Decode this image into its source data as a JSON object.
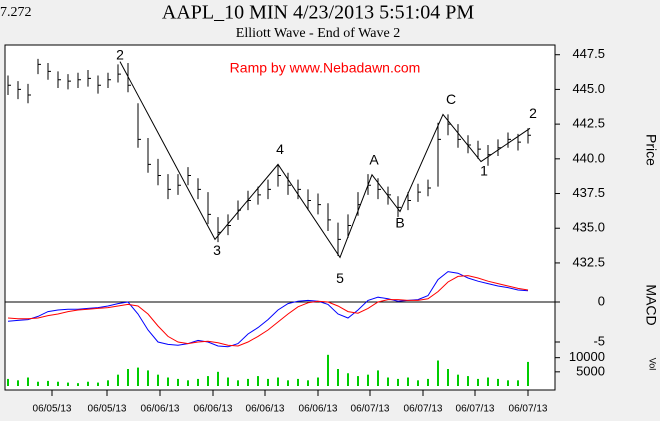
{
  "chart_data": {
    "type": "ohlc",
    "corner_text": "7.272",
    "title": "AAPL_10 MIN  4/23/2013  5:51:04 PM",
    "subtitle": "Elliott Wave -  End of Wave 2",
    "annotation": "Ramp by www.Nebadawn.com",
    "ylabel": "Price",
    "color": "#000000",
    "x": [
      0,
      1,
      2,
      3,
      4,
      5,
      6,
      7,
      8,
      9,
      10,
      11,
      12,
      13,
      14,
      15,
      16,
      17,
      18,
      19,
      20,
      21,
      22,
      23,
      24,
      25,
      26,
      27,
      28,
      29,
      30,
      31,
      32,
      33,
      34,
      35,
      36,
      37,
      38,
      39,
      40,
      41,
      42,
      43,
      44,
      45,
      46,
      47,
      48,
      49,
      50,
      51,
      52
    ],
    "xlim": [
      -0.3,
      54.7
    ],
    "xticks": [
      {
        "value": 4.4,
        "label": "06/05/13"
      },
      {
        "value": 9.9,
        "label": "06/05/13"
      },
      {
        "value": 15.2,
        "label": "06/06/13"
      },
      {
        "value": 20.5,
        "label": "06/06/13"
      },
      {
        "value": 25.7,
        "label": "06/06/13"
      },
      {
        "value": 31.0,
        "label": "06/06/13"
      },
      {
        "value": 36.2,
        "label": "06/07/13"
      },
      {
        "value": 41.5,
        "label": "06/07/13"
      },
      {
        "value": 46.7,
        "label": "06/07/13"
      },
      {
        "value": 52.0,
        "label": "06/07/13"
      }
    ],
    "ylim": [
      430.55,
      448.2
    ],
    "yticks": [
      {
        "value": 432.5,
        "label": "432.5"
      },
      {
        "value": 435,
        "label": "435.0"
      },
      {
        "value": 437.5,
        "label": "437.5"
      },
      {
        "value": 440,
        "label": "440.0"
      },
      {
        "value": 442.5,
        "label": "442.5"
      },
      {
        "value": 445,
        "label": "445.0"
      },
      {
        "value": 447.5,
        "label": "447.5"
      }
    ],
    "close": [
      445.3,
      445.0,
      444.6,
      446.8,
      446.3,
      445.7,
      445.6,
      445.7,
      445.8,
      445.3,
      445.7,
      446.1,
      445.3,
      441.4,
      439.6,
      438.8,
      437.8,
      438.1,
      438.8,
      437.8,
      436.0,
      434.7,
      435.2,
      436.3,
      437.0,
      437.4,
      437.8,
      438.8,
      438.1,
      437.8,
      437.0,
      436.7,
      435.6,
      434.2,
      435.2,
      436.7,
      438.1,
      437.8,
      437.4,
      436.5,
      437.0,
      437.6,
      437.9,
      441.4,
      442.5,
      441.4,
      441.0,
      440.7,
      440.3,
      440.8,
      441.4,
      441.2,
      441.7
    ],
    "high": [
      446.0,
      445.6,
      445.4,
      447.2,
      446.9,
      446.3,
      446.1,
      446.2,
      446.4,
      446.0,
      446.2,
      446.8,
      446.9,
      444.0,
      441.5,
      440.0,
      438.9,
      438.9,
      439.4,
      438.6,
      437.6,
      435.8,
      436.0,
      437.0,
      437.7,
      438.0,
      438.5,
      439.6,
      439.0,
      438.5,
      437.8,
      437.5,
      436.8,
      435.4,
      436.0,
      437.6,
      438.9,
      438.6,
      438.0,
      437.3,
      437.6,
      438.2,
      438.5,
      442.6,
      443.2,
      442.5,
      441.7,
      441.3,
      441.0,
      441.4,
      441.9,
      441.8,
      442.2
    ],
    "low": [
      444.6,
      444.3,
      444.0,
      446.1,
      445.7,
      445.1,
      445.0,
      445.1,
      445.2,
      444.7,
      445.1,
      445.5,
      444.8,
      440.8,
      439.0,
      438.1,
      437.1,
      437.4,
      438.1,
      437.1,
      435.3,
      434.0,
      434.5,
      435.6,
      436.3,
      436.7,
      437.1,
      438.0,
      437.4,
      437.1,
      436.3,
      436.0,
      434.8,
      433.0,
      434.3,
      435.9,
      437.4,
      437.1,
      436.7,
      435.8,
      436.3,
      436.9,
      437.3,
      438.0,
      441.7,
      440.8,
      440.4,
      440.0,
      439.5,
      440.2,
      440.8,
      440.6,
      441.1
    ],
    "wave": {
      "labels": [
        "2",
        "3",
        "4",
        "5",
        "A",
        "B",
        "C",
        "1",
        "2"
      ],
      "x": [
        11.2,
        20.7,
        27,
        33.2,
        36.4,
        39.2,
        43.5,
        47.3,
        52.2
      ],
      "values": [
        447.0,
        434.2,
        439.6,
        432.9,
        438.85,
        436.2,
        443.2,
        439.8,
        442.2
      ]
    },
    "macd": {
      "ylabel": "MACD",
      "ylim": [
        -6,
        5
      ],
      "yticks": [
        0,
        -5
      ],
      "series": [
        {
          "color": "#0000ff",
          "values": [
            -2.4,
            -2.3,
            -2.2,
            -1.8,
            -1.2,
            -1.0,
            -0.9,
            -0.9,
            -0.8,
            -0.7,
            -0.5,
            -0.2,
            0.0,
            -1.5,
            -3.5,
            -5.0,
            -5.3,
            -5.4,
            -5.2,
            -4.8,
            -5.0,
            -5.5,
            -5.6,
            -5.2,
            -4.0,
            -3.2,
            -2.2,
            -1.0,
            -0.2,
            0.1,
            0.2,
            0.1,
            -0.3,
            -1.5,
            -2.0,
            -1.0,
            0.2,
            0.6,
            0.4,
            0.1,
            0.2,
            0.3,
            0.8,
            2.8,
            3.8,
            3.6,
            3.0,
            2.6,
            2.3,
            2.0,
            1.8,
            1.5,
            1.4
          ]
        },
        {
          "color": "#ff0000",
          "values": [
            -2.0,
            -2.1,
            -2.1,
            -2.0,
            -1.7,
            -1.5,
            -1.2,
            -1.0,
            -0.9,
            -0.8,
            -0.7,
            -0.5,
            -0.3,
            -0.5,
            -1.5,
            -3.0,
            -4.3,
            -5.0,
            -5.2,
            -5.0,
            -4.9,
            -5.1,
            -5.4,
            -5.5,
            -5.0,
            -4.3,
            -3.5,
            -2.5,
            -1.5,
            -0.6,
            -0.1,
            0.1,
            0.0,
            -0.5,
            -1.2,
            -1.4,
            -0.8,
            0.0,
            0.3,
            0.3,
            0.2,
            0.2,
            0.4,
            1.3,
            2.5,
            3.2,
            3.3,
            3.0,
            2.6,
            2.3,
            2.0,
            1.7,
            1.5
          ]
        }
      ]
    },
    "volume": {
      "ylabel": "Vol",
      "color": "#00cc00",
      "ylim": [
        0,
        12000
      ],
      "yticks": [
        10000,
        5000
      ],
      "values": [
        2500,
        2000,
        3000,
        1500,
        1800,
        1500,
        1200,
        1000,
        1500,
        1200,
        2000,
        4000,
        6000,
        6500,
        5500,
        4000,
        3000,
        2500,
        2000,
        2500,
        3500,
        5000,
        3000,
        2000,
        2500,
        3500,
        2500,
        3000,
        2000,
        2500,
        2000,
        3000,
        11000,
        6000,
        4500,
        3500,
        4000,
        5500,
        3000,
        2500,
        3000,
        2000,
        2500,
        9000,
        6000,
        4000,
        3500,
        2500,
        3000,
        2500,
        2000,
        2000,
        8500
      ]
    }
  }
}
